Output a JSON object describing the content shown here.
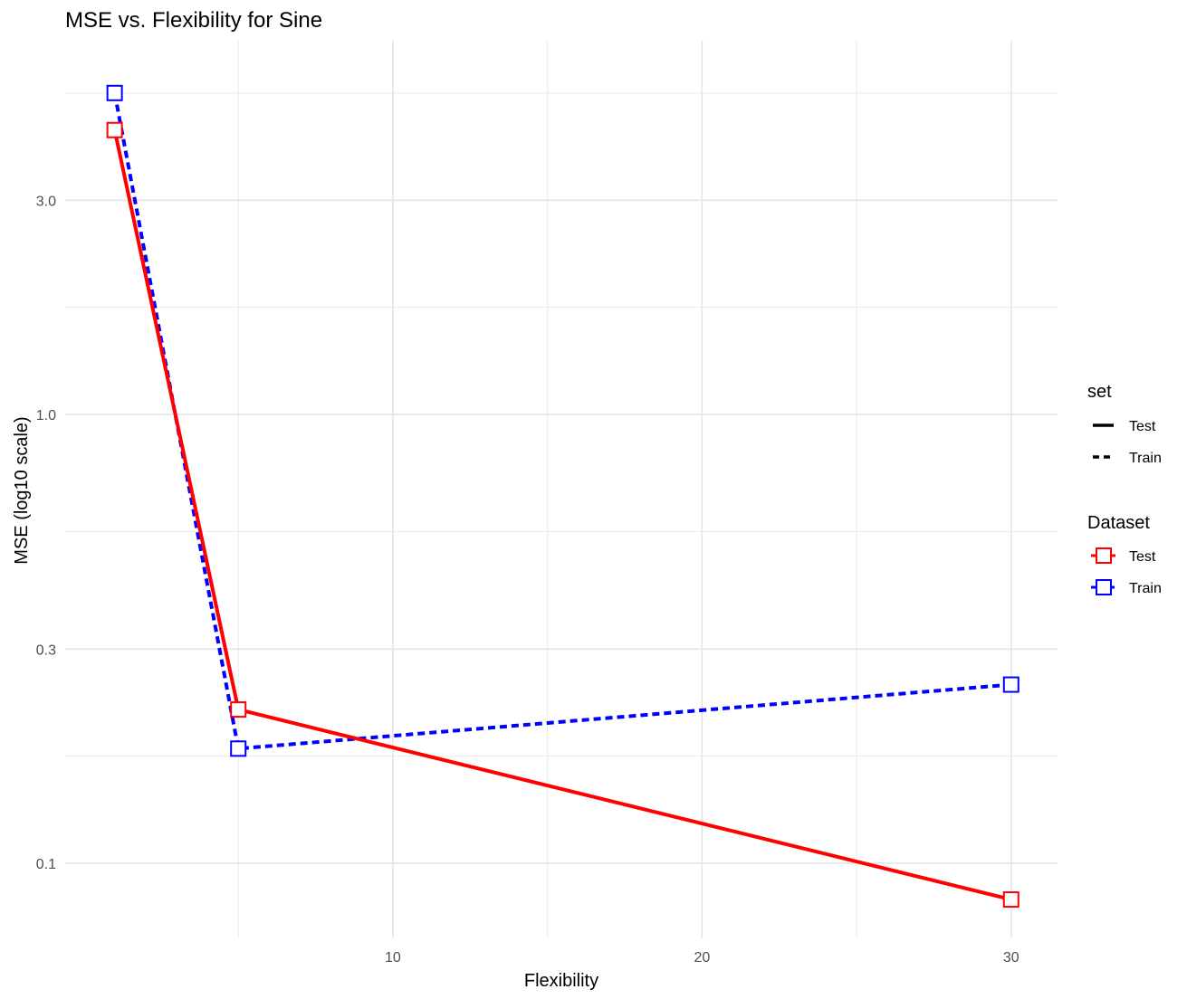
{
  "chart_data": {
    "type": "line",
    "title": "MSE vs. Flexibility for Sine",
    "xlabel": "Flexibility",
    "ylabel": "MSE (log10 scale)",
    "x_scale": "linear",
    "y_scale": "log10",
    "xlim": [
      -0.6,
      31.5
    ],
    "ylim": [
      0.068,
      6.8
    ],
    "x_ticks": [
      10,
      20,
      30
    ],
    "x_tick_labels": [
      "10",
      "20",
      "30"
    ],
    "y_ticks": [
      0.1,
      0.3,
      1.0,
      3.0
    ],
    "y_tick_labels": [
      "0.1",
      "0.3",
      "1.0",
      "3.0"
    ],
    "grid": true,
    "legend_position": "right",
    "x": [
      1,
      5,
      30
    ],
    "series": [
      {
        "name": "Test",
        "values": [
          4.3,
          0.22,
          0.083
        ],
        "color": "#ff0000",
        "linestyle": "solid",
        "marker": "square"
      },
      {
        "name": "Train",
        "values": [
          5.2,
          0.18,
          0.25
        ],
        "color": "#0000ff",
        "linestyle": "dashed",
        "marker": "square"
      }
    ],
    "legends": [
      {
        "title": "set",
        "entries": [
          {
            "label": "Test",
            "linestyle": "solid",
            "color": "#000000"
          },
          {
            "label": "Train",
            "linestyle": "dashed",
            "color": "#000000"
          }
        ]
      },
      {
        "title": "Dataset",
        "entries": [
          {
            "label": "Test",
            "color": "#ff0000",
            "marker": "square"
          },
          {
            "label": "Train",
            "color": "#0000ff",
            "marker": "square"
          }
        ]
      }
    ]
  }
}
